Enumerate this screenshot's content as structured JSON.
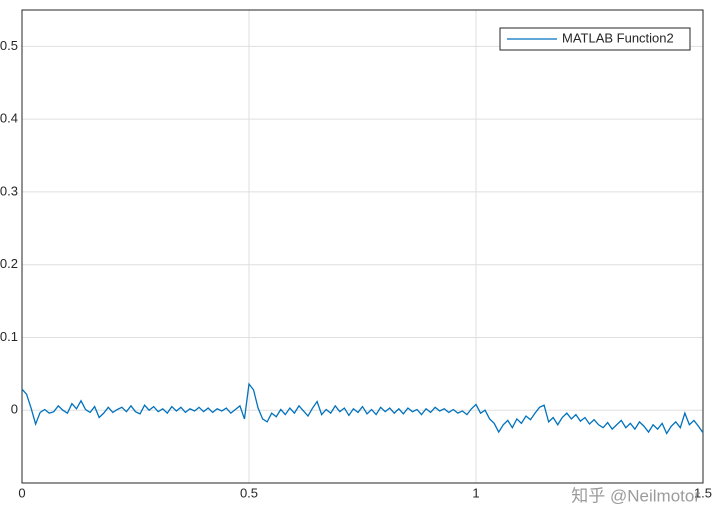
{
  "chart_data": {
    "type": "line",
    "x": [
      0,
      0.01,
      0.02,
      0.03,
      0.04,
      0.05,
      0.06,
      0.07,
      0.08,
      0.09,
      0.1,
      0.11,
      0.12,
      0.13,
      0.14,
      0.15,
      0.16,
      0.17,
      0.18,
      0.19,
      0.2,
      0.21,
      0.22,
      0.23,
      0.24,
      0.25,
      0.26,
      0.27,
      0.28,
      0.29,
      0.3,
      0.31,
      0.32,
      0.33,
      0.34,
      0.35,
      0.36,
      0.37,
      0.38,
      0.39,
      0.4,
      0.41,
      0.42,
      0.43,
      0.44,
      0.45,
      0.46,
      0.47,
      0.48,
      0.49,
      0.5,
      0.51,
      0.52,
      0.53,
      0.54,
      0.55,
      0.56,
      0.57,
      0.58,
      0.59,
      0.6,
      0.61,
      0.62,
      0.63,
      0.64,
      0.65,
      0.66,
      0.67,
      0.68,
      0.69,
      0.7,
      0.71,
      0.72,
      0.73,
      0.74,
      0.75,
      0.76,
      0.77,
      0.78,
      0.79,
      0.8,
      0.81,
      0.82,
      0.83,
      0.84,
      0.85,
      0.86,
      0.87,
      0.88,
      0.89,
      0.9,
      0.91,
      0.92,
      0.93,
      0.94,
      0.95,
      0.96,
      0.97,
      0.98,
      0.99,
      1,
      1.01,
      1.02,
      1.03,
      1.04,
      1.05,
      1.06,
      1.07,
      1.08,
      1.09,
      1.1,
      1.11,
      1.12,
      1.13,
      1.14,
      1.15,
      1.16,
      1.17,
      1.18,
      1.19,
      1.2,
      1.21,
      1.22,
      1.23,
      1.24,
      1.25,
      1.26,
      1.27,
      1.28,
      1.29,
      1.3,
      1.31,
      1.32,
      1.33,
      1.34,
      1.35,
      1.36,
      1.37,
      1.38,
      1.39,
      1.4,
      1.41,
      1.42,
      1.43,
      1.44,
      1.45,
      1.46,
      1.47,
      1.48,
      1.49,
      1.5
    ],
    "series": [
      {
        "name": "MATLAB Function2",
        "color": "#0072bd",
        "values": [
          0.029,
          0.022,
          0.003,
          -0.019,
          -0.003,
          0.001,
          -0.004,
          -0.002,
          0.006,
          0.0,
          -0.004,
          0.009,
          0.002,
          0.013,
          0.001,
          -0.003,
          0.005,
          -0.01,
          -0.004,
          0.004,
          -0.003,
          0.001,
          0.004,
          -0.002,
          0.006,
          -0.002,
          -0.005,
          0.007,
          0.0,
          0.005,
          -0.002,
          0.002,
          -0.004,
          0.005,
          -0.001,
          0.004,
          -0.003,
          0.002,
          -0.001,
          0.004,
          -0.002,
          0.003,
          -0.003,
          0.002,
          -0.001,
          0.003,
          -0.004,
          0.001,
          0.006,
          -0.012,
          0.036,
          0.028,
          0.003,
          -0.012,
          -0.016,
          -0.004,
          -0.009,
          0.001,
          -0.006,
          0.003,
          -0.004,
          0.006,
          -0.001,
          -0.008,
          0.003,
          0.012,
          -0.006,
          0.001,
          -0.004,
          0.006,
          -0.002,
          0.003,
          -0.007,
          0.002,
          -0.003,
          0.005,
          -0.005,
          0.001,
          -0.006,
          0.004,
          -0.002,
          0.003,
          -0.004,
          0.002,
          -0.005,
          0.003,
          -0.002,
          0.001,
          -0.006,
          0.002,
          -0.003,
          0.004,
          -0.001,
          0.002,
          -0.003,
          0.001,
          -0.004,
          -0.001,
          -0.006,
          0.002,
          0.008,
          -0.004,
          0.0,
          -0.012,
          -0.018,
          -0.03,
          -0.02,
          -0.014,
          -0.024,
          -0.012,
          -0.018,
          -0.008,
          -0.013,
          -0.004,
          0.004,
          0.007,
          -0.016,
          -0.01,
          -0.02,
          -0.01,
          -0.004,
          -0.012,
          -0.006,
          -0.015,
          -0.01,
          -0.019,
          -0.013,
          -0.02,
          -0.024,
          -0.017,
          -0.026,
          -0.02,
          -0.014,
          -0.024,
          -0.018,
          -0.026,
          -0.016,
          -0.022,
          -0.03,
          -0.02,
          -0.026,
          -0.018,
          -0.032,
          -0.022,
          -0.016,
          -0.024,
          -0.004,
          -0.02,
          -0.014,
          -0.022,
          -0.031
        ]
      }
    ],
    "xlim": [
      0,
      1.5
    ],
    "ylim": [
      -0.1,
      0.55
    ],
    "xticks": [
      0,
      0.5,
      1,
      1.5
    ],
    "yticks": [
      0,
      0.1,
      0.2,
      0.3,
      0.4,
      0.5
    ],
    "grid": true,
    "legend": "upper right",
    "watermark": "知乎 @Neilmotor"
  }
}
